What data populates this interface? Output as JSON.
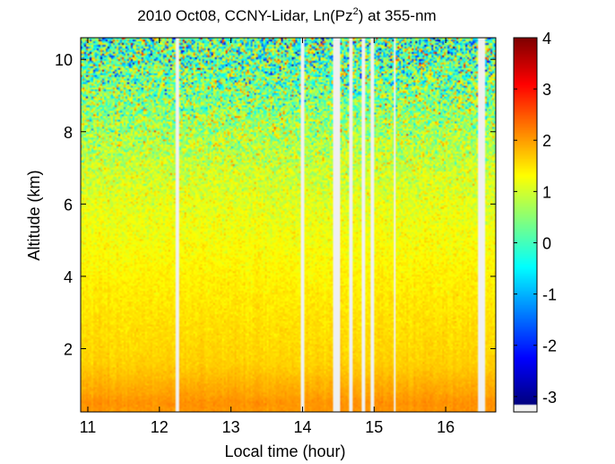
{
  "chart_data": {
    "type": "heatmap",
    "title": {
      "prefix": "2010 Oct08, CCNY-Lidar, Ln(Pz",
      "superscript": "2",
      "suffix": ") at 355-nm"
    },
    "xlabel": "Local time (hour)",
    "ylabel": "Altitude (km)",
    "xlim": [
      10.9,
      16.7
    ],
    "ylim": [
      0.25,
      10.6
    ],
    "xticks": [
      "11",
      "12",
      "13",
      "14",
      "15",
      "16"
    ],
    "yticks": [
      "2",
      "4",
      "6",
      "8",
      "10"
    ],
    "colorbar": {
      "min": -3.3,
      "max": 4,
      "ticks": [
        "-3",
        "-2",
        "-1",
        "0",
        "1",
        "2",
        "3",
        "4"
      ],
      "colormap": "jet",
      "missing_color": "#f0f0f0"
    },
    "value_profile": {
      "altitude_km": [
        0.25,
        0.5,
        0.8,
        1.1,
        1.3,
        1.6,
        2.0,
        3.0,
        4.0,
        5.0,
        6.0,
        7.0,
        8.0,
        9.0,
        10.0,
        10.6
      ],
      "mean_value": [
        2.0,
        2.05,
        1.9,
        1.8,
        1.7,
        1.6,
        1.55,
        1.45,
        1.35,
        1.22,
        1.08,
        0.9,
        0.65,
        0.4,
        0.15,
        0.0
      ],
      "noise_std": [
        0.05,
        0.05,
        0.05,
        0.05,
        0.06,
        0.06,
        0.07,
        0.08,
        0.1,
        0.15,
        0.22,
        0.35,
        0.55,
        0.8,
        1.1,
        1.25
      ]
    },
    "data_gaps_hour": [
      [
        14.43,
        14.53
      ],
      [
        14.64,
        14.71
      ],
      [
        14.82,
        14.88
      ],
      [
        14.94,
        14.99
      ],
      [
        16.44,
        16.54
      ]
    ],
    "thin_gaps_hour": [
      12.25,
      14.0,
      15.28
    ]
  }
}
